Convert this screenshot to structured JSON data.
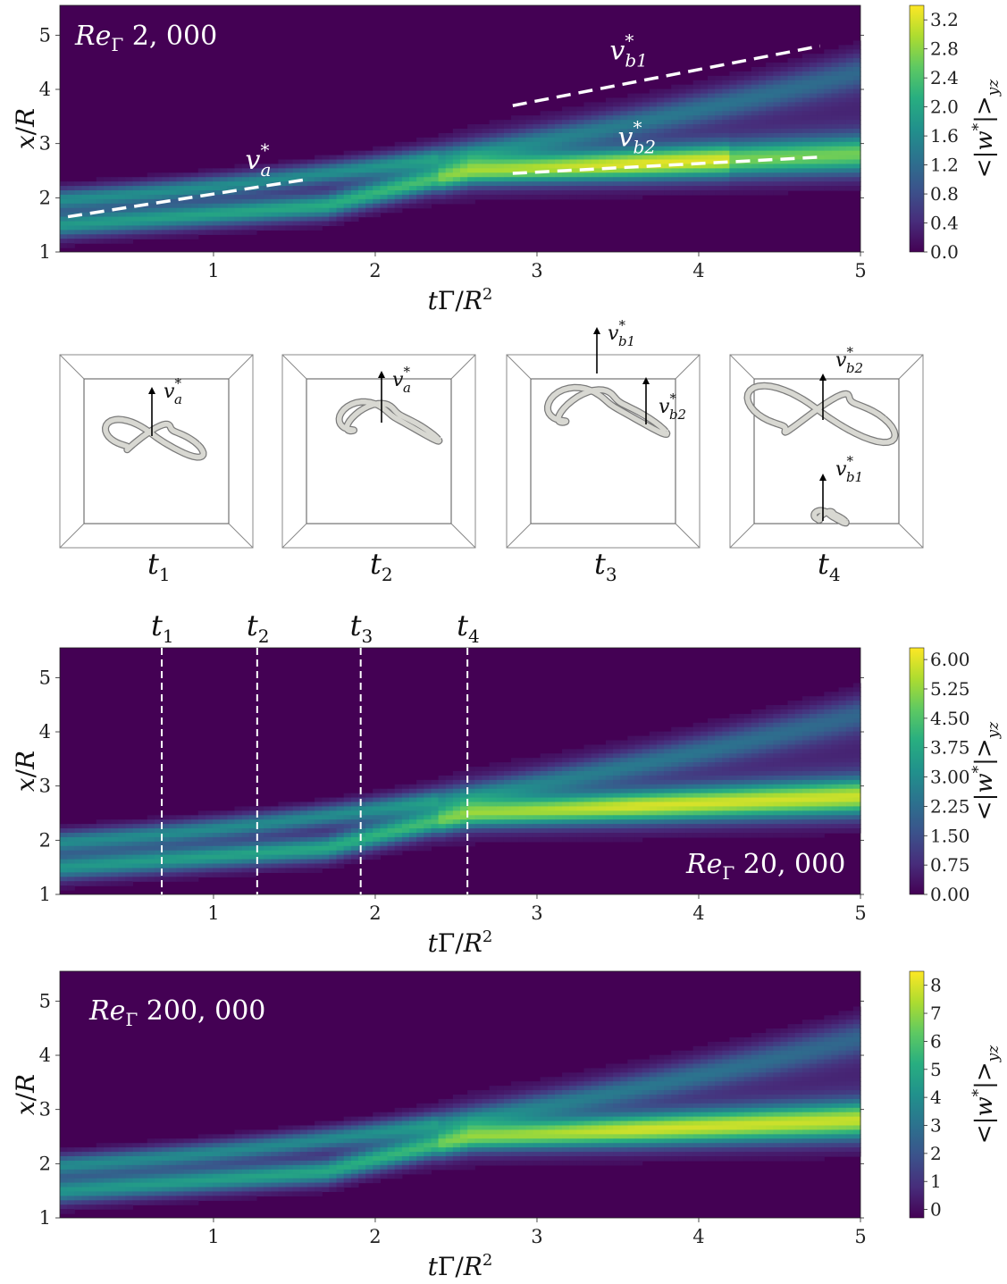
{
  "colormap": [
    "#440154",
    "#472d7b",
    "#3b528b",
    "#2c728e",
    "#21918c",
    "#28ae80",
    "#5ec962",
    "#addc30",
    "#fde725"
  ],
  "chart_data": [
    {
      "type": "heatmap",
      "title": "Re_Γ 2,000",
      "label_re": "Re",
      "label_sub": "Γ",
      "label_val": "2, 000",
      "xlabel": "tΓ/R²",
      "ylabel": "x/R",
      "xlim": [
        0.05,
        5.0
      ],
      "ylim": [
        1.0,
        5.55
      ],
      "x_ticks": [
        "1",
        "2",
        "3",
        "4",
        "5"
      ],
      "x_tick_values": [
        1,
        2,
        3,
        4,
        5
      ],
      "y_ticks": [
        "1",
        "2",
        "3",
        "4",
        "5"
      ],
      "y_tick_values": [
        1,
        2,
        3,
        4,
        5
      ],
      "colorbar_label": "<|w*|>_yz",
      "colorbar_ticks": [
        "0.0",
        "0.4",
        "0.8",
        "1.2",
        "1.6",
        "2.0",
        "2.4",
        "2.8",
        "3.2"
      ],
      "colorbar_range": [
        0,
        3.4
      ],
      "peak_value": 3.3,
      "annotations": [
        {
          "label": "v*_a",
          "main": "v",
          "sup": "*",
          "sub": "a",
          "x0": 0.1,
          "y0": 1.65,
          "x1": 1.6,
          "y1": 2.35,
          "lx": 0.6,
          "ly": 2.4
        },
        {
          "label": "v*_b1",
          "main": "v",
          "sup": "*",
          "sub": "b1",
          "x0": 2.85,
          "y0": 3.7,
          "x1": 4.75,
          "y1": 4.8,
          "lx": 3.45,
          "ly": 4.55
        },
        {
          "label": "v*_b2",
          "main": "v",
          "sup": "*",
          "sub": "b2",
          "x0": 2.85,
          "y0": 2.45,
          "x1": 4.75,
          "y1": 2.75,
          "lx": 3.5,
          "ly": 2.95
        }
      ]
    },
    {
      "type": "heatmap",
      "title": "Re_Γ 20,000",
      "label_re": "Re",
      "label_sub": "Γ",
      "label_val": "20, 000",
      "xlabel": "tΓ/R²",
      "ylabel": "x/R",
      "xlim": [
        0.05,
        5.0
      ],
      "ylim": [
        1.0,
        5.55
      ],
      "x_ticks": [
        "1",
        "2",
        "3",
        "4",
        "5"
      ],
      "x_tick_values": [
        1,
        2,
        3,
        4,
        5
      ],
      "y_ticks": [
        "1",
        "2",
        "3",
        "4",
        "5"
      ],
      "y_tick_values": [
        1,
        2,
        3,
        4,
        5
      ],
      "colorbar_label": "<|w*|>_yz",
      "colorbar_ticks": [
        "0.00",
        "0.75",
        "1.50",
        "2.25",
        "3.00",
        "3.75",
        "4.50",
        "5.25",
        "6.00"
      ],
      "colorbar_range": [
        0,
        6.3
      ],
      "peak_value": 6.0,
      "time_markers": [
        {
          "label": "t",
          "sub": "1",
          "x": 0.68
        },
        {
          "label": "t",
          "sub": "2",
          "x": 1.27
        },
        {
          "label": "t",
          "sub": "3",
          "x": 1.91
        },
        {
          "label": "t",
          "sub": "4",
          "x": 2.57
        }
      ]
    },
    {
      "type": "heatmap",
      "title": "Re_Γ 200,000",
      "label_re": "Re",
      "label_sub": "Γ",
      "label_val": "200, 000",
      "xlabel": "tΓ/R²",
      "ylabel": "x/R",
      "xlim": [
        0.05,
        5.0
      ],
      "ylim": [
        1.0,
        5.55
      ],
      "x_ticks": [
        "1",
        "2",
        "3",
        "4",
        "5"
      ],
      "x_tick_values": [
        1,
        2,
        3,
        4,
        5
      ],
      "y_ticks": [
        "1",
        "2",
        "3",
        "4",
        "5"
      ],
      "y_tick_values": [
        1,
        2,
        3,
        4,
        5
      ],
      "colorbar_label": "<|w*|>_yz",
      "colorbar_ticks": [
        "0",
        "1",
        "2",
        "3",
        "4",
        "5",
        "6",
        "7",
        "8"
      ],
      "colorbar_range": [
        -0.3,
        8.5
      ],
      "peak_value": 8.0
    }
  ],
  "snapshots": [
    {
      "label": "t",
      "sub": "1",
      "arrows": [
        {
          "main": "v",
          "sup": "*",
          "sub": "a"
        }
      ]
    },
    {
      "label": "t",
      "sub": "2",
      "arrows": [
        {
          "main": "v",
          "sup": "*",
          "sub": "a"
        }
      ]
    },
    {
      "label": "t",
      "sub": "3",
      "arrows": [
        {
          "main": "v",
          "sup": "*",
          "sub": "b1"
        },
        {
          "main": "v",
          "sup": "*",
          "sub": "b2"
        }
      ]
    },
    {
      "label": "t",
      "sub": "4",
      "arrows": [
        {
          "main": "v",
          "sup": "*",
          "sub": "b2"
        },
        {
          "main": "v",
          "sup": "*",
          "sub": "b1"
        }
      ]
    }
  ]
}
